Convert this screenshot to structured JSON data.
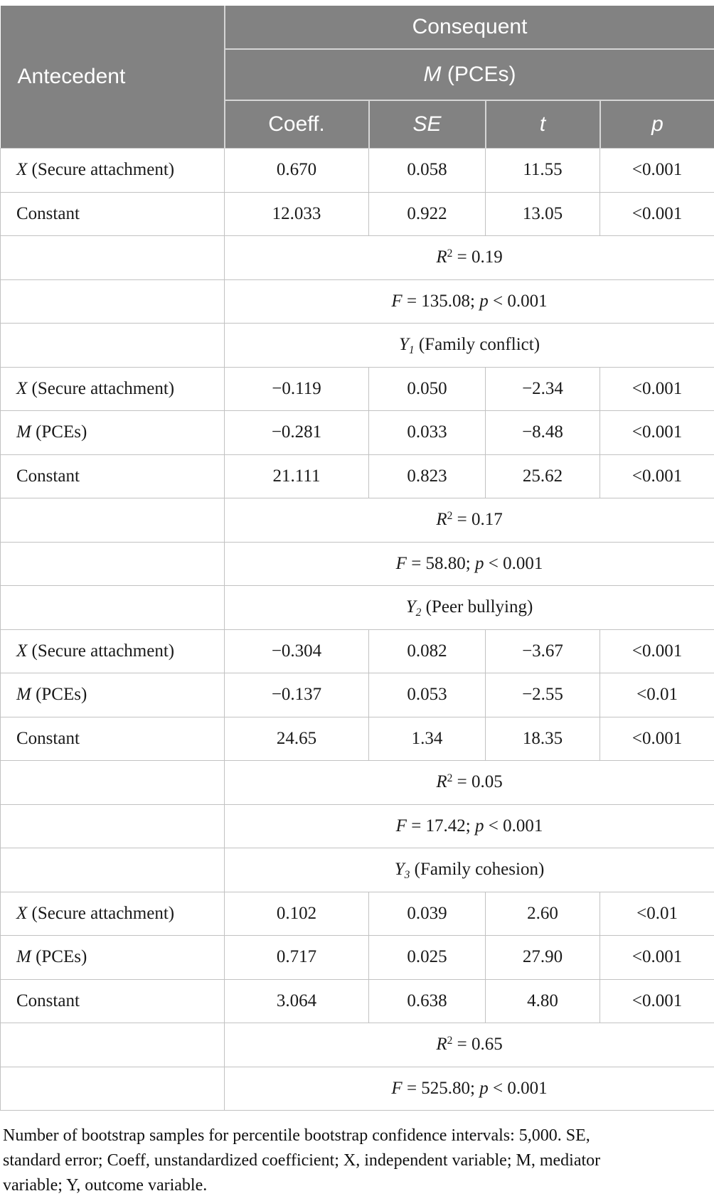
{
  "table": {
    "header": {
      "antecedent": [
        {
          "t": "Antecedent"
        }
      ],
      "consequent": [
        {
          "t": "Consequent"
        }
      ],
      "mediator": [
        {
          "t": "M",
          "i": true
        },
        {
          "t": " (PCEs)"
        }
      ],
      "columns": [
        [
          {
            "t": "Coeff."
          }
        ],
        [
          {
            "t": "SE",
            "i": true
          }
        ],
        [
          {
            "t": "t",
            "i": true
          }
        ],
        [
          {
            "t": "p",
            "i": true
          }
        ]
      ]
    },
    "rows": [
      {
        "type": "data",
        "label": [
          {
            "t": "X",
            "i": true
          },
          {
            "t": " (Secure attachment)"
          }
        ],
        "values": [
          "0.670",
          "0.058",
          "11.55",
          "<0.001"
        ]
      },
      {
        "type": "data",
        "label": [
          {
            "t": "Constant"
          }
        ],
        "values": [
          "12.033",
          "0.922",
          "13.05",
          "<0.001"
        ]
      },
      {
        "type": "stat",
        "content": [
          {
            "t": "R",
            "i": true
          },
          {
            "t": "2",
            "sup": true
          },
          {
            "t": " = 0.19"
          }
        ]
      },
      {
        "type": "stat",
        "content": [
          {
            "t": "F",
            "i": true
          },
          {
            "t": " = 135.08; "
          },
          {
            "t": "p",
            "i": true
          },
          {
            "t": " < 0.001"
          }
        ]
      },
      {
        "type": "outcome",
        "content": [
          {
            "t": "Y",
            "i": true
          },
          {
            "t": "1",
            "sub": true,
            "i": true
          },
          {
            "t": " (Family conflict)"
          }
        ]
      },
      {
        "type": "data",
        "label": [
          {
            "t": "X",
            "i": true
          },
          {
            "t": " (Secure attachment)"
          }
        ],
        "values": [
          "−0.119",
          "0.050",
          "−2.34",
          "<0.001"
        ]
      },
      {
        "type": "data",
        "label": [
          {
            "t": "M",
            "i": true
          },
          {
            "t": " (PCEs)"
          }
        ],
        "values": [
          "−0.281",
          "0.033",
          "−8.48",
          "<0.001"
        ]
      },
      {
        "type": "data",
        "label": [
          {
            "t": "Constant"
          }
        ],
        "values": [
          "21.111",
          "0.823",
          "25.62",
          "<0.001"
        ]
      },
      {
        "type": "stat",
        "content": [
          {
            "t": "R",
            "i": true
          },
          {
            "t": "2",
            "sup": true
          },
          {
            "t": " = 0.17"
          }
        ]
      },
      {
        "type": "stat",
        "content": [
          {
            "t": "F",
            "i": true
          },
          {
            "t": " = 58.80; "
          },
          {
            "t": "p",
            "i": true
          },
          {
            "t": " < 0.001"
          }
        ]
      },
      {
        "type": "outcome",
        "content": [
          {
            "t": "Y",
            "i": true
          },
          {
            "t": "2",
            "sub": true,
            "i": true
          },
          {
            "t": " (Peer bullying)"
          }
        ]
      },
      {
        "type": "data",
        "label": [
          {
            "t": "X",
            "i": true
          },
          {
            "t": " (Secure attachment)"
          }
        ],
        "values": [
          "−0.304",
          "0.082",
          "−3.67",
          "<0.001"
        ]
      },
      {
        "type": "data",
        "label": [
          {
            "t": "M",
            "i": true
          },
          {
            "t": " (PCEs)"
          }
        ],
        "values": [
          "−0.137",
          "0.053",
          "−2.55",
          "<0.01"
        ]
      },
      {
        "type": "data",
        "label": [
          {
            "t": "Constant"
          }
        ],
        "values": [
          "24.65",
          "1.34",
          "18.35",
          "<0.001"
        ]
      },
      {
        "type": "stat",
        "content": [
          {
            "t": "R",
            "i": true
          },
          {
            "t": "2",
            "sup": true
          },
          {
            "t": " = 0.05"
          }
        ]
      },
      {
        "type": "stat",
        "content": [
          {
            "t": "F",
            "i": true
          },
          {
            "t": " = 17.42; "
          },
          {
            "t": "p",
            "i": true
          },
          {
            "t": " < 0.001"
          }
        ]
      },
      {
        "type": "outcome",
        "content": [
          {
            "t": "Y",
            "i": true
          },
          {
            "t": "3",
            "sub": true,
            "i": true
          },
          {
            "t": " (Family cohesion)"
          }
        ]
      },
      {
        "type": "data",
        "label": [
          {
            "t": "X",
            "i": true
          },
          {
            "t": " (Secure attachment)"
          }
        ],
        "values": [
          "0.102",
          "0.039",
          "2.60",
          "<0.01"
        ]
      },
      {
        "type": "data",
        "label": [
          {
            "t": "M",
            "i": true
          },
          {
            "t": " (PCEs)"
          }
        ],
        "values": [
          "0.717",
          "0.025",
          "27.90",
          "<0.001"
        ]
      },
      {
        "type": "data",
        "label": [
          {
            "t": "Constant"
          }
        ],
        "values": [
          "3.064",
          "0.638",
          "4.80",
          "<0.001"
        ]
      },
      {
        "type": "stat",
        "content": [
          {
            "t": "R",
            "i": true
          },
          {
            "t": "2",
            "sup": true
          },
          {
            "t": " = 0.65"
          }
        ]
      },
      {
        "type": "stat",
        "content": [
          {
            "t": "F",
            "i": true
          },
          {
            "t": " = 525.80; "
          },
          {
            "t": "p",
            "i": true
          },
          {
            "t": " < 0.001"
          }
        ]
      }
    ]
  },
  "footnote_lines": [
    "Number of bootstrap samples for percentile bootstrap confidence intervals: 5,000. SE,",
    "standard error; Coeff, unstandardized coefficient; X, independent variable; M, mediator",
    "variable; Y, outcome variable."
  ],
  "colors": {
    "header_bg": "#828282",
    "header_line": "#d6d6d6",
    "body_border": "#c2c2c2",
    "header_text": "#ffffff",
    "body_text": "#1a1a1a"
  }
}
